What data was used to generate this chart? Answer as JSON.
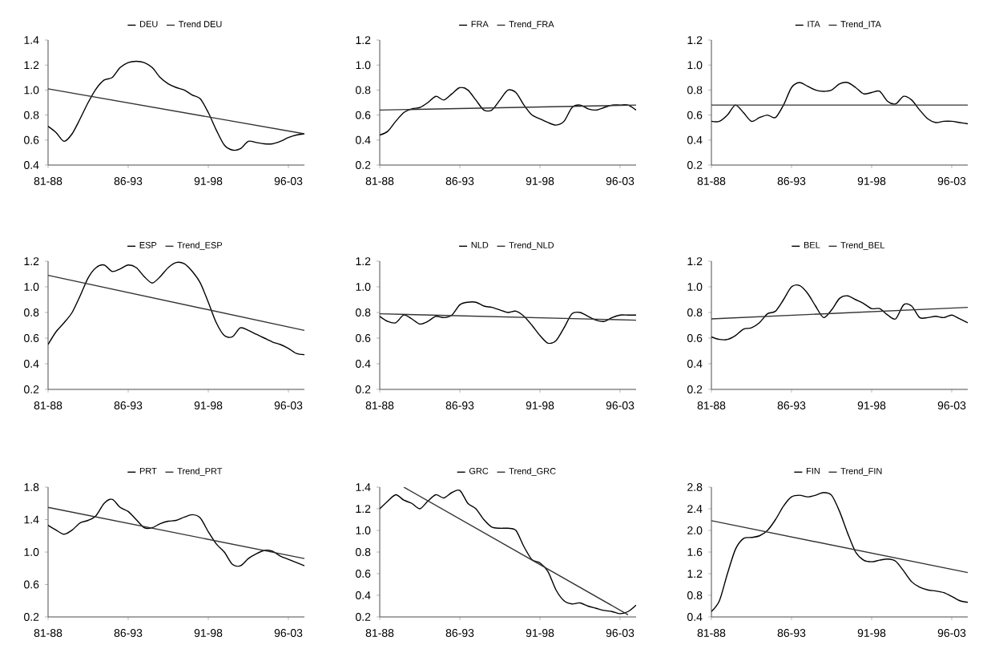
{
  "chart_data": [
    {
      "type": "line",
      "categories": [
        "81-88",
        null,
        null,
        null,
        null,
        null,
        null,
        null,
        null,
        null,
        "86-93",
        null,
        null,
        null,
        null,
        null,
        null,
        null,
        null,
        null,
        "91-98",
        null,
        null,
        null,
        null,
        null,
        null,
        null,
        null,
        null,
        "96-03",
        null,
        null
      ],
      "legend": "top",
      "ylim": [
        0.4,
        1.4
      ],
      "yticks": [
        {
          "value": 0.4,
          "label": "0.4"
        },
        {
          "value": 0.6,
          "label": "0.6"
        },
        {
          "value": 0.8,
          "label": "0.8"
        },
        {
          "value": 1.0,
          "label": "1.0"
        },
        {
          "value": 1.2,
          "label": "1.2"
        },
        {
          "value": 1.4,
          "label": "1.4"
        }
      ],
      "series": [
        {
          "name": "DEU",
          "color": "#000000",
          "values": [
            0.71,
            0.66,
            0.59,
            0.65,
            0.77,
            0.9,
            1.01,
            1.08,
            1.1,
            1.18,
            1.22,
            1.23,
            1.22,
            1.18,
            1.1,
            1.05,
            1.02,
            1.0,
            0.96,
            0.93,
            0.82,
            0.68,
            0.56,
            0.52,
            0.53,
            0.59,
            0.58,
            0.57,
            0.57,
            0.59,
            0.62,
            0.64,
            0.65
          ]
        },
        {
          "name": "Trend DEU",
          "color": "#333333",
          "values": [
            1.01,
            null,
            null,
            null,
            null,
            null,
            null,
            null,
            null,
            null,
            null,
            null,
            null,
            null,
            null,
            null,
            null,
            null,
            null,
            null,
            null,
            null,
            null,
            null,
            null,
            null,
            null,
            null,
            null,
            null,
            null,
            null,
            0.65
          ]
        }
      ]
    },
    {
      "type": "line",
      "categories": [
        "81-88",
        null,
        null,
        null,
        null,
        null,
        null,
        null,
        null,
        null,
        "86-93",
        null,
        null,
        null,
        null,
        null,
        null,
        null,
        null,
        null,
        "91-98",
        null,
        null,
        null,
        null,
        null,
        null,
        null,
        null,
        null,
        "96-03",
        null,
        null
      ],
      "legend": "top",
      "ylim": [
        0.2,
        1.2
      ],
      "yticks": [
        {
          "value": 0.2,
          "label": "0.2"
        },
        {
          "value": 0.4,
          "label": "0.4"
        },
        {
          "value": 0.6,
          "label": "0.6"
        },
        {
          "value": 0.8,
          "label": "0.8"
        },
        {
          "value": 1.0,
          "label": "1.0"
        },
        {
          "value": 1.2,
          "label": "1.2"
        }
      ],
      "series": [
        {
          "name": "FRA",
          "color": "#000000",
          "values": [
            0.44,
            0.47,
            0.55,
            0.62,
            0.65,
            0.66,
            0.7,
            0.75,
            0.72,
            0.77,
            0.82,
            0.8,
            0.72,
            0.64,
            0.64,
            0.72,
            0.8,
            0.78,
            0.68,
            0.6,
            0.57,
            0.54,
            0.52,
            0.55,
            0.66,
            0.68,
            0.65,
            0.64,
            0.66,
            0.68,
            0.68,
            0.68,
            0.64
          ]
        },
        {
          "name": "Trend_FRA",
          "color": "#333333",
          "values": [
            0.64,
            null,
            null,
            null,
            null,
            null,
            null,
            null,
            null,
            null,
            null,
            null,
            null,
            null,
            null,
            null,
            null,
            null,
            null,
            null,
            null,
            null,
            null,
            null,
            null,
            null,
            null,
            null,
            null,
            null,
            null,
            null,
            0.68
          ]
        }
      ]
    },
    {
      "type": "line",
      "categories": [
        "81-88",
        null,
        null,
        null,
        null,
        null,
        null,
        null,
        null,
        null,
        "86-93",
        null,
        null,
        null,
        null,
        null,
        null,
        null,
        null,
        null,
        "91-98",
        null,
        null,
        null,
        null,
        null,
        null,
        null,
        null,
        null,
        "96-03",
        null,
        null
      ],
      "legend": "top",
      "ylim": [
        0.2,
        1.2
      ],
      "yticks": [
        {
          "value": 0.2,
          "label": "0.2"
        },
        {
          "value": 0.4,
          "label": "0.4"
        },
        {
          "value": 0.6,
          "label": "0.6"
        },
        {
          "value": 0.8,
          "label": "0.8"
        },
        {
          "value": 1.0,
          "label": "1.0"
        },
        {
          "value": 1.2,
          "label": "1.2"
        }
      ],
      "series": [
        {
          "name": "ITA",
          "color": "#000000",
          "values": [
            0.55,
            0.55,
            0.6,
            0.68,
            0.62,
            0.55,
            0.58,
            0.6,
            0.58,
            0.68,
            0.82,
            0.86,
            0.83,
            0.8,
            0.79,
            0.8,
            0.85,
            0.86,
            0.82,
            0.77,
            0.78,
            0.79,
            0.71,
            0.69,
            0.75,
            0.72,
            0.64,
            0.57,
            0.54,
            0.55,
            0.55,
            0.54,
            0.53
          ]
        },
        {
          "name": "Trend_ITA",
          "color": "#333333",
          "values": [
            0.68,
            null,
            null,
            null,
            null,
            null,
            null,
            null,
            null,
            null,
            null,
            null,
            null,
            null,
            null,
            null,
            null,
            null,
            null,
            null,
            null,
            null,
            null,
            null,
            null,
            null,
            null,
            null,
            null,
            null,
            null,
            null,
            0.68
          ]
        }
      ]
    },
    {
      "type": "line",
      "categories": [
        "81-88",
        null,
        null,
        null,
        null,
        null,
        null,
        null,
        null,
        null,
        "86-93",
        null,
        null,
        null,
        null,
        null,
        null,
        null,
        null,
        null,
        "91-98",
        null,
        null,
        null,
        null,
        null,
        null,
        null,
        null,
        null,
        "96-03",
        null,
        null
      ],
      "legend": "top",
      "ylim": [
        0.2,
        1.2
      ],
      "yticks": [
        {
          "value": 0.2,
          "label": "0.2"
        },
        {
          "value": 0.4,
          "label": "0.4"
        },
        {
          "value": 0.6,
          "label": "0.6"
        },
        {
          "value": 0.8,
          "label": "0.8"
        },
        {
          "value": 1.0,
          "label": "1.0"
        },
        {
          "value": 1.2,
          "label": "1.2"
        }
      ],
      "series": [
        {
          "name": "ESP",
          "color": "#000000",
          "values": [
            0.55,
            0.65,
            0.72,
            0.8,
            0.93,
            1.07,
            1.15,
            1.17,
            1.12,
            1.14,
            1.17,
            1.15,
            1.08,
            1.03,
            1.08,
            1.15,
            1.19,
            1.18,
            1.12,
            1.03,
            0.88,
            0.72,
            0.62,
            0.61,
            0.68,
            0.66,
            0.63,
            0.6,
            0.57,
            0.55,
            0.52,
            0.48,
            0.47
          ]
        },
        {
          "name": "Trend_ESP",
          "color": "#333333",
          "values": [
            1.09,
            null,
            null,
            null,
            null,
            null,
            null,
            null,
            null,
            null,
            null,
            null,
            null,
            null,
            null,
            null,
            null,
            null,
            null,
            null,
            null,
            null,
            null,
            null,
            null,
            null,
            null,
            null,
            null,
            null,
            null,
            null,
            0.66
          ]
        }
      ]
    },
    {
      "type": "line",
      "categories": [
        "81-88",
        null,
        null,
        null,
        null,
        null,
        null,
        null,
        null,
        null,
        "86-93",
        null,
        null,
        null,
        null,
        null,
        null,
        null,
        null,
        null,
        "91-98",
        null,
        null,
        null,
        null,
        null,
        null,
        null,
        null,
        null,
        "96-03",
        null,
        null
      ],
      "legend": "top",
      "ylim": [
        0.2,
        1.2
      ],
      "yticks": [
        {
          "value": 0.2,
          "label": "0.2"
        },
        {
          "value": 0.4,
          "label": "0.4"
        },
        {
          "value": 0.6,
          "label": "0.6"
        },
        {
          "value": 0.8,
          "label": "0.8"
        },
        {
          "value": 1.0,
          "label": "1.0"
        },
        {
          "value": 1.2,
          "label": "1.2"
        }
      ],
      "series": [
        {
          "name": "NLD",
          "color": "#000000",
          "values": [
            0.77,
            0.73,
            0.72,
            0.78,
            0.75,
            0.71,
            0.73,
            0.77,
            0.76,
            0.78,
            0.86,
            0.88,
            0.88,
            0.85,
            0.84,
            0.82,
            0.8,
            0.81,
            0.77,
            0.7,
            0.62,
            0.56,
            0.58,
            0.68,
            0.79,
            0.8,
            0.77,
            0.74,
            0.73,
            0.76,
            0.78,
            0.78,
            0.78
          ]
        },
        {
          "name": "Trend_NLD",
          "color": "#333333",
          "values": [
            0.79,
            null,
            null,
            null,
            null,
            null,
            null,
            null,
            null,
            null,
            null,
            null,
            null,
            null,
            null,
            null,
            null,
            null,
            null,
            null,
            null,
            null,
            null,
            null,
            null,
            null,
            null,
            null,
            null,
            null,
            null,
            null,
            0.74
          ]
        }
      ]
    },
    {
      "type": "line",
      "categories": [
        "81-88",
        null,
        null,
        null,
        null,
        null,
        null,
        null,
        null,
        null,
        "86-93",
        null,
        null,
        null,
        null,
        null,
        null,
        null,
        null,
        null,
        "91-98",
        null,
        null,
        null,
        null,
        null,
        null,
        null,
        null,
        null,
        "96-03",
        null,
        null
      ],
      "legend": "top",
      "ylim": [
        0.2,
        1.2
      ],
      "yticks": [
        {
          "value": 0.2,
          "label": "0.2"
        },
        {
          "value": 0.4,
          "label": "0.4"
        },
        {
          "value": 0.6,
          "label": "0.6"
        },
        {
          "value": 0.8,
          "label": "0.8"
        },
        {
          "value": 1.0,
          "label": "1.0"
        },
        {
          "value": 1.2,
          "label": "1.2"
        }
      ],
      "series": [
        {
          "name": "BEL",
          "color": "#000000",
          "values": [
            0.61,
            0.59,
            0.59,
            0.62,
            0.67,
            0.68,
            0.72,
            0.79,
            0.81,
            0.9,
            1.0,
            1.01,
            0.95,
            0.85,
            0.76,
            0.82,
            0.91,
            0.93,
            0.9,
            0.87,
            0.83,
            0.83,
            0.78,
            0.75,
            0.86,
            0.85,
            0.76,
            0.76,
            0.77,
            0.76,
            0.78,
            0.75,
            0.72
          ]
        },
        {
          "name": "Trend_BEL",
          "color": "#333333",
          "values": [
            0.75,
            null,
            null,
            null,
            null,
            null,
            null,
            null,
            null,
            null,
            null,
            null,
            null,
            null,
            null,
            null,
            null,
            null,
            null,
            null,
            null,
            null,
            null,
            null,
            null,
            null,
            null,
            null,
            null,
            null,
            null,
            null,
            0.84
          ]
        }
      ]
    },
    {
      "type": "line",
      "categories": [
        "81-88",
        null,
        null,
        null,
        null,
        null,
        null,
        null,
        null,
        null,
        "86-93",
        null,
        null,
        null,
        null,
        null,
        null,
        null,
        null,
        null,
        "91-98",
        null,
        null,
        null,
        null,
        null,
        null,
        null,
        null,
        null,
        "96-03",
        null,
        null
      ],
      "legend": "top",
      "ylim": [
        0.2,
        1.8
      ],
      "yticks": [
        {
          "value": 0.2,
          "label": "0.2"
        },
        {
          "value": 0.6,
          "label": "0.6"
        },
        {
          "value": 1.0,
          "label": "1.0"
        },
        {
          "value": 1.4,
          "label": "1.4"
        },
        {
          "value": 1.8,
          "label": "1.8"
        }
      ],
      "series": [
        {
          "name": "PRT",
          "color": "#000000",
          "values": [
            1.33,
            1.27,
            1.22,
            1.27,
            1.36,
            1.39,
            1.45,
            1.6,
            1.65,
            1.55,
            1.5,
            1.4,
            1.3,
            1.3,
            1.35,
            1.38,
            1.39,
            1.43,
            1.46,
            1.42,
            1.25,
            1.1,
            1.0,
            0.85,
            0.83,
            0.92,
            0.98,
            1.02,
            1.01,
            0.95,
            0.91,
            0.87,
            0.83
          ]
        },
        {
          "name": "Trend_PRT",
          "color": "#333333",
          "values": [
            1.55,
            null,
            null,
            null,
            null,
            null,
            null,
            null,
            null,
            null,
            null,
            null,
            null,
            null,
            null,
            null,
            null,
            null,
            null,
            null,
            null,
            null,
            null,
            null,
            null,
            null,
            null,
            null,
            null,
            null,
            null,
            null,
            0.92
          ]
        }
      ]
    },
    {
      "type": "line",
      "categories": [
        "81-88",
        null,
        null,
        null,
        null,
        null,
        null,
        null,
        null,
        null,
        "86-93",
        null,
        null,
        null,
        null,
        null,
        null,
        null,
        null,
        null,
        "91-98",
        null,
        null,
        null,
        null,
        null,
        null,
        null,
        null,
        null,
        "96-03",
        null,
        null
      ],
      "legend": "top",
      "ylim": [
        0.2,
        1.4
      ],
      "yticks": [
        {
          "value": 0.2,
          "label": "0.2"
        },
        {
          "value": 0.4,
          "label": "0.4"
        },
        {
          "value": 0.6,
          "label": "0.6"
        },
        {
          "value": 0.8,
          "label": "0.8"
        },
        {
          "value": 1.0,
          "label": "1.0"
        },
        {
          "value": 1.2,
          "label": "1.2"
        },
        {
          "value": 1.4,
          "label": "1.4"
        }
      ],
      "series": [
        {
          "name": "GRC",
          "color": "#000000",
          "values": [
            1.2,
            1.27,
            1.33,
            1.28,
            1.25,
            1.2,
            1.27,
            1.33,
            1.3,
            1.35,
            1.37,
            1.25,
            1.2,
            1.1,
            1.03,
            1.02,
            1.02,
            1.0,
            0.85,
            0.73,
            0.7,
            0.62,
            0.45,
            0.35,
            0.32,
            0.33,
            0.3,
            0.28,
            0.26,
            0.25,
            0.23,
            0.25,
            0.31
          ]
        },
        {
          "name": "Trend_GRC",
          "color": "#333333",
          "values": [
            null,
            null,
            null,
            1.4,
            null,
            null,
            null,
            null,
            null,
            null,
            null,
            null,
            null,
            null,
            null,
            null,
            null,
            null,
            null,
            null,
            null,
            null,
            null,
            null,
            null,
            null,
            null,
            null,
            null,
            null,
            null,
            0.22,
            null
          ]
        }
      ]
    },
    {
      "type": "line",
      "categories": [
        "81-88",
        null,
        null,
        null,
        null,
        null,
        null,
        null,
        null,
        null,
        "86-93",
        null,
        null,
        null,
        null,
        null,
        null,
        null,
        null,
        null,
        "91-98",
        null,
        null,
        null,
        null,
        null,
        null,
        null,
        null,
        null,
        "96-03",
        null,
        null
      ],
      "legend": "top",
      "ylim": [
        0.4,
        2.8
      ],
      "yticks": [
        {
          "value": 0.4,
          "label": "0.4"
        },
        {
          "value": 0.8,
          "label": "0.8"
        },
        {
          "value": 1.2,
          "label": "1.2"
        },
        {
          "value": 1.6,
          "label": "1.6"
        },
        {
          "value": 2.0,
          "label": "2.0"
        },
        {
          "value": 2.4,
          "label": "2.4"
        },
        {
          "value": 2.8,
          "label": "2.8"
        }
      ],
      "series": [
        {
          "name": "FIN",
          "color": "#000000",
          "values": [
            0.5,
            0.7,
            1.2,
            1.65,
            1.85,
            1.87,
            1.9,
            2.0,
            2.2,
            2.45,
            2.62,
            2.65,
            2.62,
            2.65,
            2.7,
            2.65,
            2.35,
            1.95,
            1.6,
            1.45,
            1.42,
            1.45,
            1.47,
            1.43,
            1.25,
            1.05,
            0.95,
            0.9,
            0.88,
            0.85,
            0.78,
            0.7,
            0.67
          ]
        },
        {
          "name": "Trend_FIN",
          "color": "#333333",
          "values": [
            2.18,
            null,
            null,
            null,
            null,
            null,
            null,
            null,
            null,
            null,
            null,
            null,
            null,
            null,
            null,
            null,
            null,
            null,
            null,
            null,
            null,
            null,
            null,
            null,
            null,
            null,
            null,
            null,
            null,
            null,
            null,
            null,
            1.22
          ]
        }
      ]
    }
  ]
}
